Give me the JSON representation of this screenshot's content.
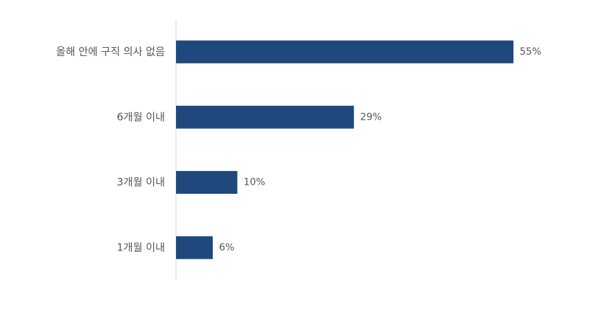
{
  "chart_data": {
    "type": "bar",
    "orientation": "horizontal",
    "categories": [
      "올해 안에 구직 의사 없음",
      "6개월 이내",
      "3개월 이내",
      "1개월 이내"
    ],
    "values": [
      55,
      29,
      10,
      6
    ],
    "value_labels": [
      "55%",
      "29%",
      "10%",
      "6%"
    ],
    "color": "#1f497d"
  }
}
